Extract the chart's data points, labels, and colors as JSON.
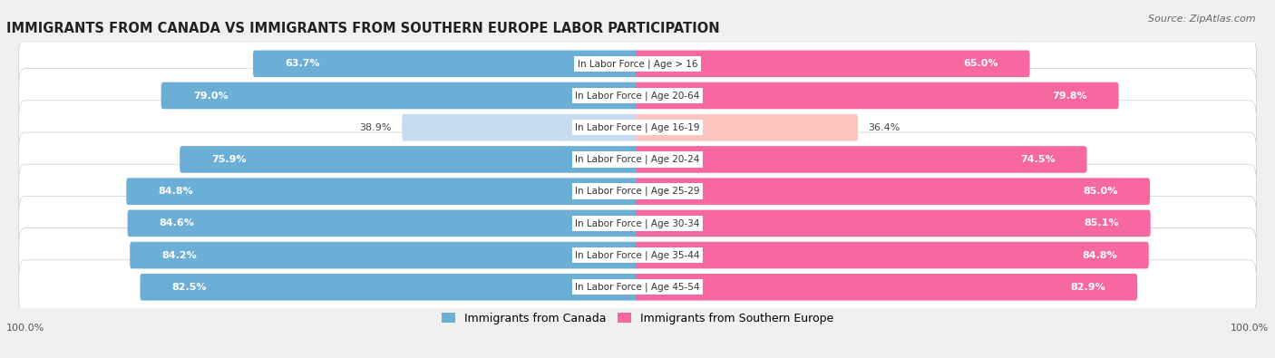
{
  "title": "IMMIGRANTS FROM CANADA VS IMMIGRANTS FROM SOUTHERN EUROPE LABOR PARTICIPATION",
  "source": "Source: ZipAtlas.com",
  "categories": [
    "In Labor Force | Age > 16",
    "In Labor Force | Age 20-64",
    "In Labor Force | Age 16-19",
    "In Labor Force | Age 20-24",
    "In Labor Force | Age 25-29",
    "In Labor Force | Age 30-34",
    "In Labor Force | Age 35-44",
    "In Labor Force | Age 45-54"
  ],
  "canada_values": [
    63.7,
    79.0,
    38.9,
    75.9,
    84.8,
    84.6,
    84.2,
    82.5
  ],
  "europe_values": [
    65.0,
    79.8,
    36.4,
    74.5,
    85.0,
    85.1,
    84.8,
    82.9
  ],
  "canada_color": "#6baed6",
  "canada_color_light": "#c6dbef",
  "europe_color": "#f768a1",
  "europe_color_light": "#fcc5c0",
  "label_canada": "Immigrants from Canada",
  "label_europe": "Immigrants from Southern Europe",
  "background_color": "#f0f0f0",
  "bar_background": "#e8e8e8",
  "threshold": 50.0,
  "legend_label_fontsize": 9,
  "value_fontsize": 8,
  "cat_fontsize": 7.5,
  "title_fontsize": 10.5,
  "source_fontsize": 8,
  "bottom_label": "100.0%"
}
